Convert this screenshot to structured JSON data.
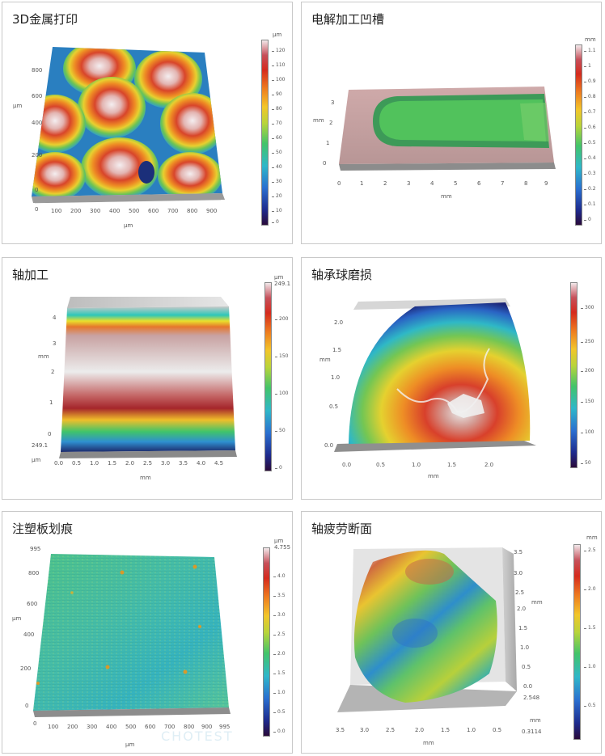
{
  "panels": [
    {
      "title": "3D金属打印",
      "unit_axis_y": "μm",
      "unit_axis_x": "μm",
      "unit_bar": "μm",
      "y_ticks": [
        "0",
        "200",
        "400",
        "600",
        "800"
      ],
      "x_ticks": [
        "0",
        "100",
        "200",
        "300",
        "400",
        "500",
        "600",
        "700",
        "800",
        "900"
      ],
      "bar_ticks": [
        "0",
        "10",
        "20",
        "30",
        "40",
        "50",
        "60",
        "70",
        "80",
        "90",
        "100",
        "110",
        "120"
      ]
    },
    {
      "title": "电解加工凹槽",
      "unit_axis_y": "mm",
      "unit_axis_x": "mm",
      "unit_bar": "mm",
      "y_ticks": [
        "0",
        "1",
        "2",
        "3"
      ],
      "x_ticks": [
        "0",
        "1",
        "2",
        "3",
        "4",
        "5",
        "6",
        "7",
        "8",
        "9"
      ],
      "bar_ticks": [
        "0",
        "0.1",
        "0.2",
        "0.3",
        "0.4",
        "0.5",
        "0.6",
        "0.7",
        "0.8",
        "0.9",
        "1",
        "1.1"
      ]
    },
    {
      "title": "轴加工",
      "unit_axis_y": "mm",
      "unit_axis_x": "mm",
      "unit_bar": "μm",
      "unit_z": "μm",
      "z_value": "249.1",
      "bar_top": "249.1",
      "y_ticks": [
        "0",
        "1",
        "2",
        "3",
        "4"
      ],
      "x_ticks": [
        "0.0",
        "0.5",
        "1.0",
        "1.5",
        "2.0",
        "2.5",
        "3.0",
        "3.5",
        "4.0",
        "4.5"
      ],
      "bar_ticks": [
        "0",
        "50",
        "100",
        "150",
        "200"
      ]
    },
    {
      "title": "轴承球磨损",
      "unit_axis_y": "mm",
      "unit_axis_x": "mm",
      "unit_bar": "",
      "y_ticks": [
        "0.0",
        "0.5",
        "1.0",
        "1.5",
        "2.0"
      ],
      "x_ticks": [
        "0.0",
        "0.5",
        "1.0",
        "1.5",
        "2.0"
      ],
      "bar_ticks": [
        "50",
        "100",
        "150",
        "200",
        "250",
        "300"
      ]
    },
    {
      "title": "注塑板划痕",
      "unit_axis_y": "μm",
      "unit_axis_x": "μm",
      "unit_bar": "μm",
      "y_top": "995",
      "x_end": "995",
      "bar_top": "4.755",
      "y_ticks": [
        "0",
        "200",
        "400",
        "600",
        "800"
      ],
      "x_ticks": [
        "0",
        "100",
        "200",
        "300",
        "400",
        "500",
        "600",
        "700",
        "800",
        "900"
      ],
      "bar_ticks": [
        "0.0",
        "0.5",
        "1.0",
        "1.5",
        "2.0",
        "2.5",
        "3.0",
        "3.5",
        "4.0"
      ]
    },
    {
      "title": "轴疲劳断面",
      "unit_axis_y": "mm",
      "unit_axis_x": "mm",
      "unit_bar": "mm",
      "unit_z": "mm",
      "z_low": "2.548",
      "z_min": "0.3114",
      "y_ticks": [
        "0.0",
        "0.5",
        "1.0",
        "1.5",
        "2.0",
        "2.5",
        "3.0",
        "3.5"
      ],
      "x_ticks": [
        "3.5",
        "3.0",
        "2.5",
        "2.0",
        "1.5",
        "1.0",
        "0.5"
      ],
      "bar_ticks": [
        "0.5",
        "1.0",
        "1.5",
        "2.0",
        "2.5"
      ]
    }
  ],
  "watermark": "CHOTEST"
}
